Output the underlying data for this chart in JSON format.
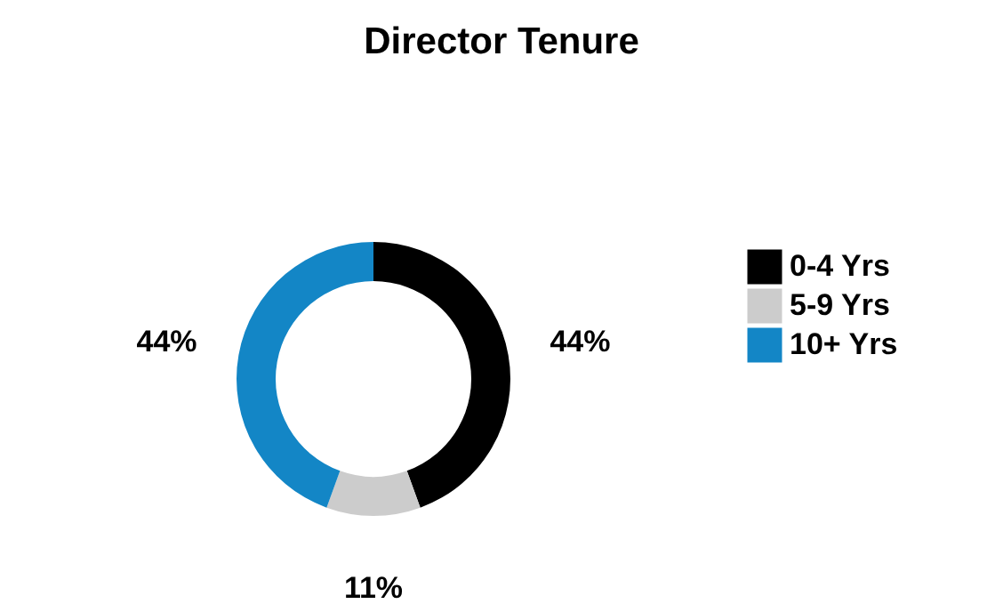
{
  "chart_data": {
    "type": "donut",
    "title": "Director Tenure",
    "categories": [
      "0-4 Yrs",
      "5-9 Yrs",
      "10+ Yrs"
    ],
    "values": [
      44,
      11,
      44
    ],
    "colors": [
      "#000000",
      "#cccccc",
      "#1386c6"
    ],
    "value_labels": [
      "44%",
      "11%",
      "44%"
    ],
    "legend": "right"
  }
}
